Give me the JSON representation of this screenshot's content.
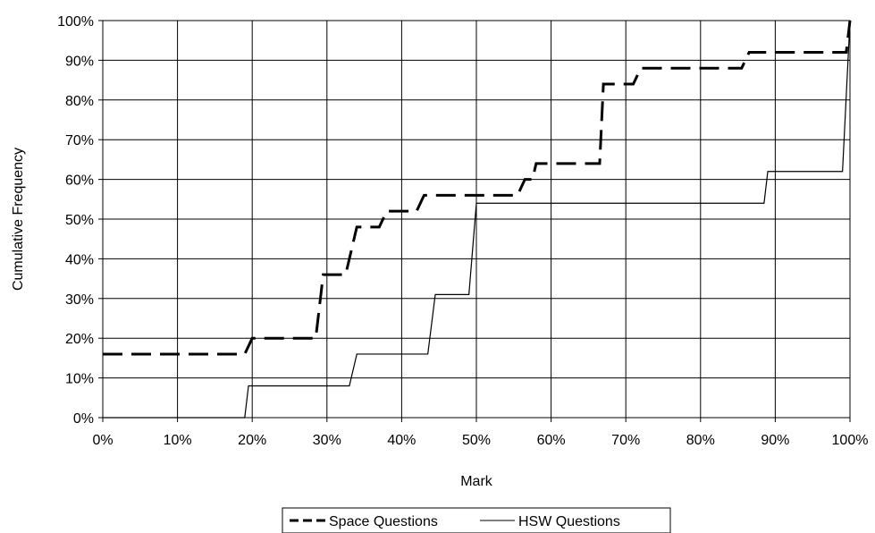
{
  "chart_data": {
    "type": "line",
    "title": "",
    "xlabel": "Mark",
    "ylabel": "Cumulative Frequency",
    "xlim": [
      0,
      100
    ],
    "ylim": [
      0,
      100
    ],
    "grid": true,
    "legend_position": "bottom",
    "x_tick_labels": [
      "0%",
      "10%",
      "20%",
      "30%",
      "40%",
      "50%",
      "60%",
      "70%",
      "80%",
      "90%",
      "100%"
    ],
    "y_tick_labels": [
      "0%",
      "10%",
      "20%",
      "30%",
      "40%",
      "50%",
      "60%",
      "70%",
      "80%",
      "90%",
      "100%"
    ],
    "series": [
      {
        "name": "Space Questions",
        "style": "dashed-bold",
        "color": "#000000",
        "points": [
          [
            0,
            16
          ],
          [
            19,
            16
          ],
          [
            20,
            20
          ],
          [
            28.5,
            20
          ],
          [
            29.5,
            36
          ],
          [
            32.5,
            36
          ],
          [
            34,
            48
          ],
          [
            37,
            48
          ],
          [
            38,
            52
          ],
          [
            42,
            52
          ],
          [
            43,
            56
          ],
          [
            55.5,
            56
          ],
          [
            56.5,
            60
          ],
          [
            57.5,
            60
          ],
          [
            58,
            64
          ],
          [
            66.5,
            64
          ],
          [
            67,
            84
          ],
          [
            71,
            84
          ],
          [
            72,
            88
          ],
          [
            85.5,
            88
          ],
          [
            86.5,
            92
          ],
          [
            99.5,
            92
          ],
          [
            100,
            100
          ]
        ]
      },
      {
        "name": "HSW Questions",
        "style": "solid-thin",
        "color": "#000000",
        "points": [
          [
            0,
            0
          ],
          [
            19,
            0
          ],
          [
            19.5,
            8
          ],
          [
            33,
            8
          ],
          [
            34,
            16
          ],
          [
            43.5,
            16
          ],
          [
            44.5,
            31
          ],
          [
            49,
            31
          ],
          [
            50,
            54
          ],
          [
            88.5,
            54
          ],
          [
            89,
            62
          ],
          [
            99,
            62
          ],
          [
            100,
            100
          ]
        ]
      }
    ]
  }
}
